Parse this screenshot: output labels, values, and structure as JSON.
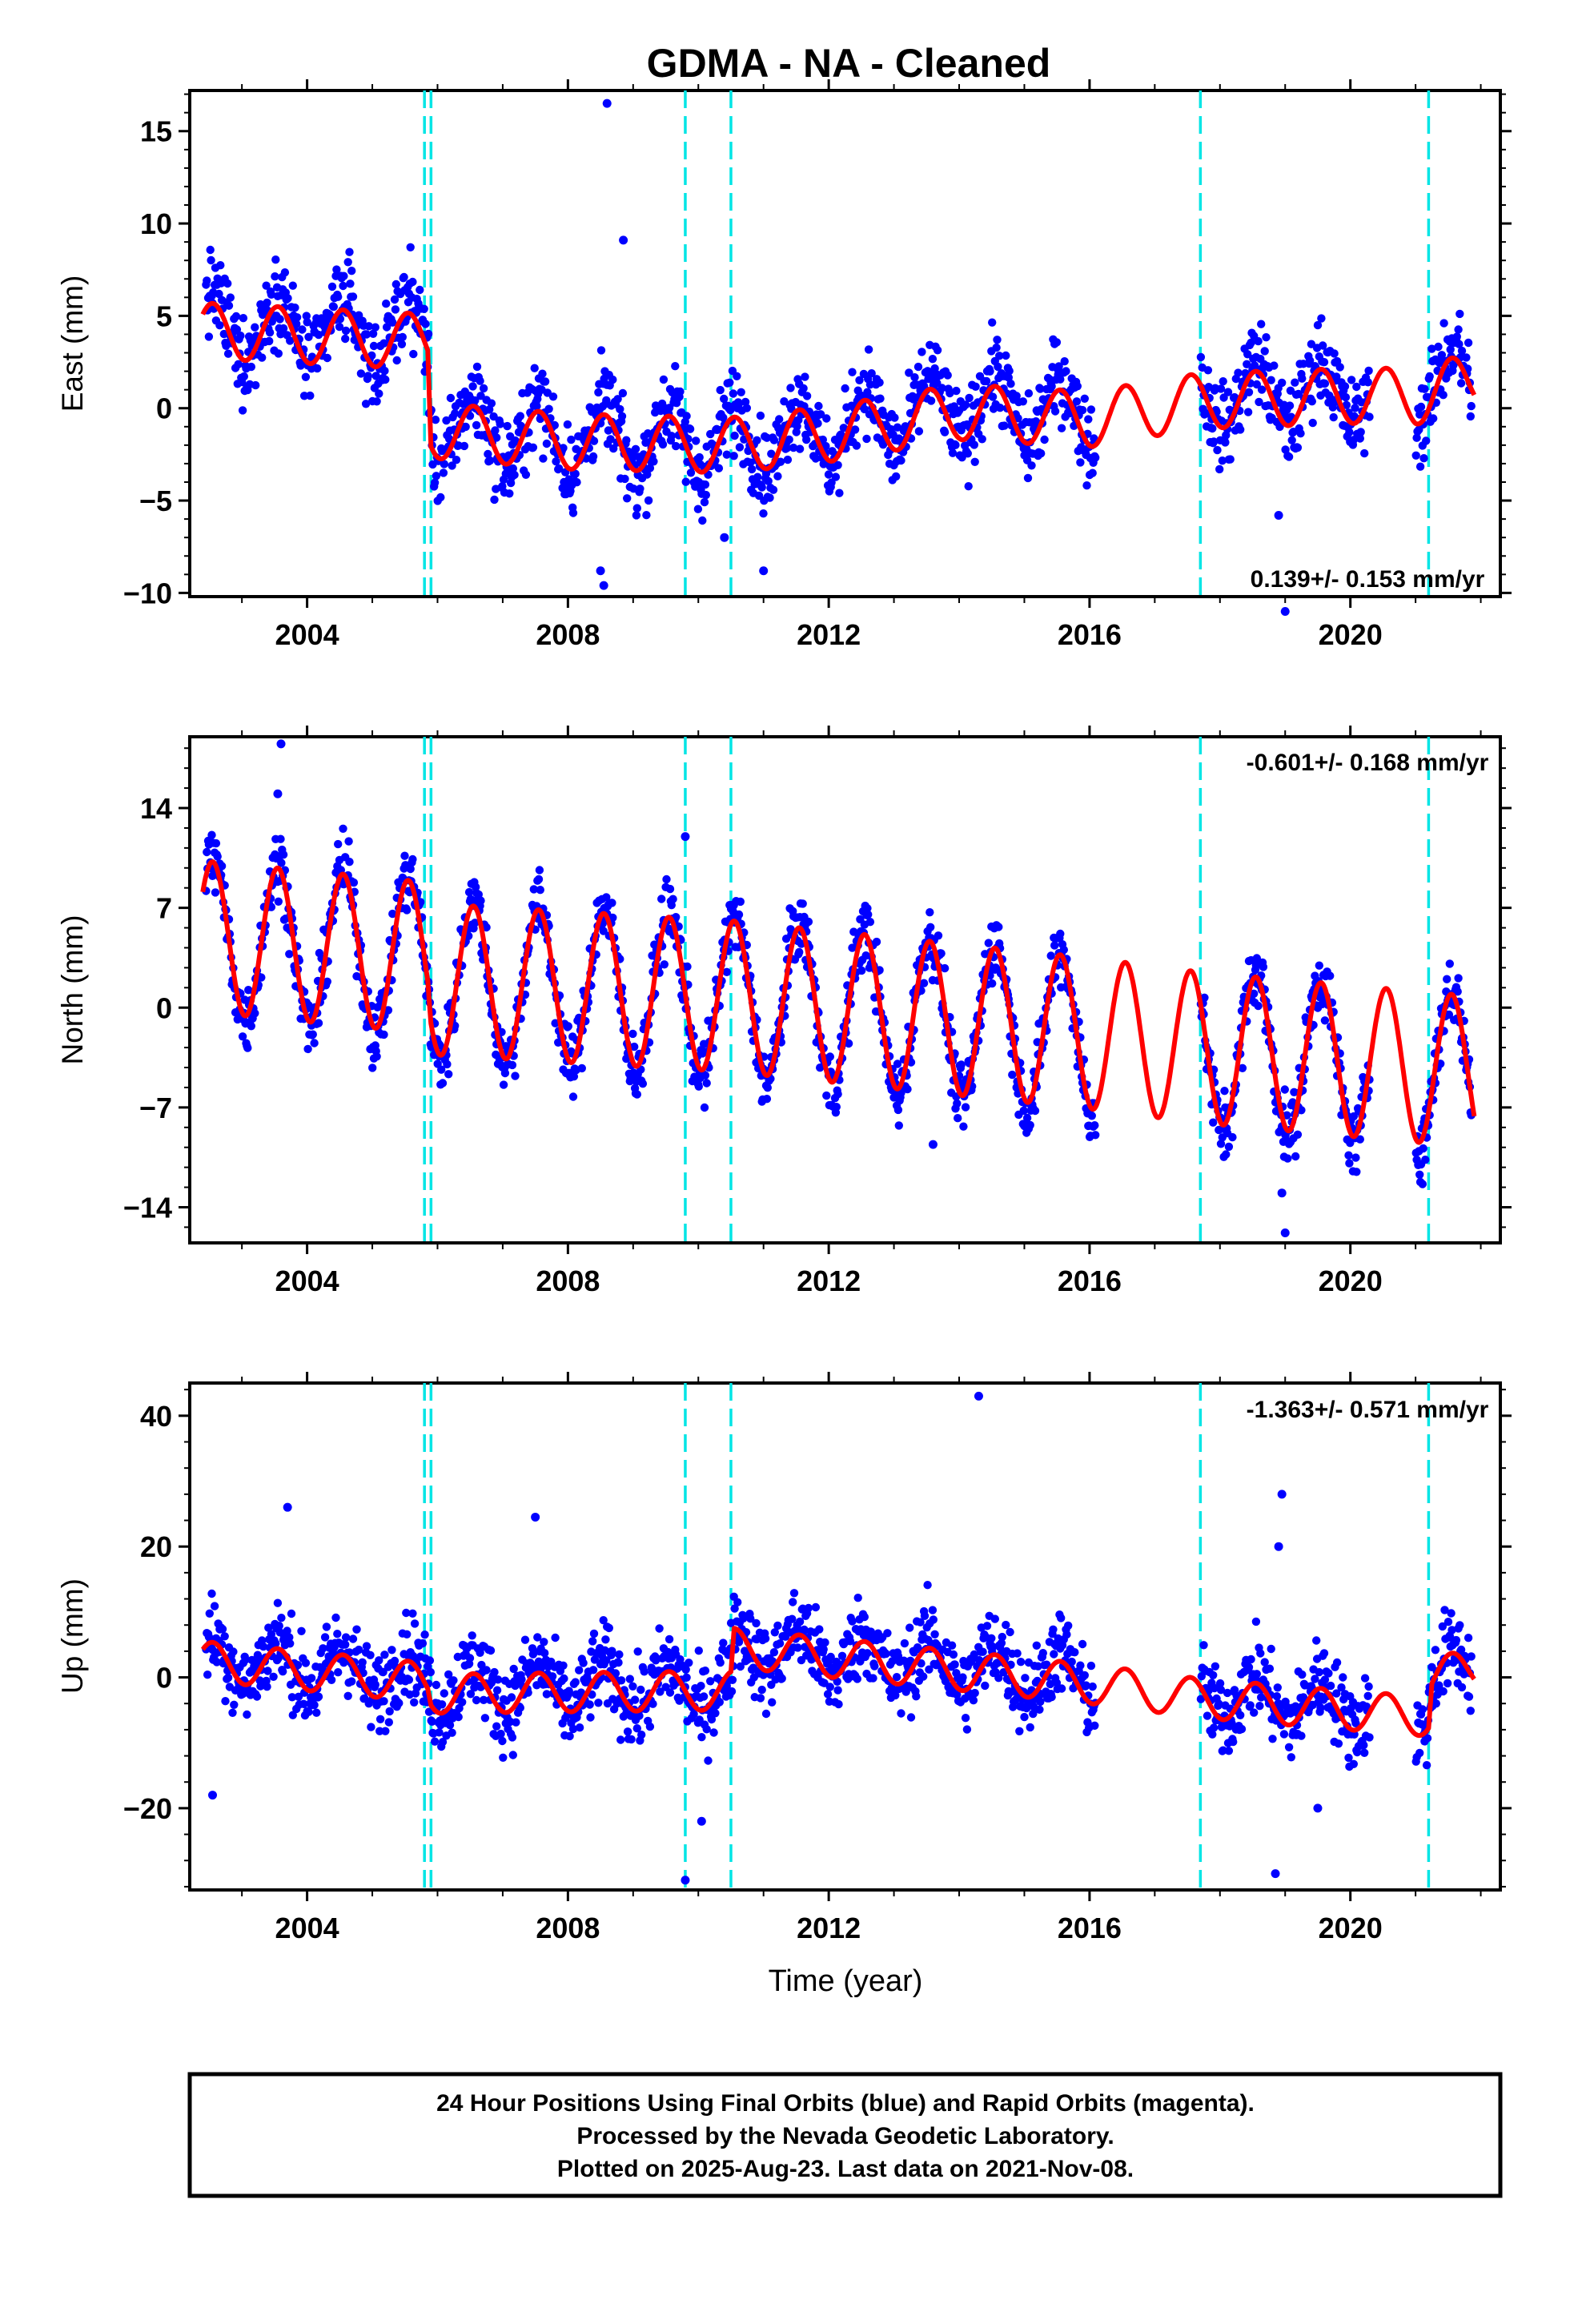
{
  "page": {
    "title": "GDMA  - NA - Cleaned"
  },
  "footer": {
    "line1": "24 Hour Positions Using Final Orbits (blue) and Rapid Orbits (magenta).",
    "line2": "Processed by the Nevada Geodetic Laboratory.",
    "line3": "Plotted on 2025-Aug-23. Last data on 2021-Nov-08."
  },
  "colors": {
    "data": "#0000ff",
    "model": "#ff0000",
    "offsets": "#00e5e5",
    "frame": "#000000"
  },
  "offset_epochs": [
    2005.8,
    2005.9,
    2009.8,
    2010.5,
    2017.7,
    2021.2
  ],
  "chart_data": [
    {
      "type": "scatter",
      "panel": "east",
      "ylabel": "East (mm)",
      "xlabel": "",
      "rate_label": "0.139+/- 0.153 mm/yr",
      "xlim": [
        2002.2,
        2022.3
      ],
      "ylim": [
        -10.2,
        17.2
      ],
      "xticks": [
        2004,
        2008,
        2012,
        2016,
        2020
      ],
      "yticks": [
        -10,
        -5,
        0,
        5,
        10,
        15
      ],
      "ytick_labels": [
        "−10",
        "−5",
        "0",
        "5",
        "10",
        "15"
      ],
      "gaps": [
        [
          2016.1,
          2017.7
        ],
        [
          2020.3,
          2021.0
        ]
      ],
      "series": [
        {
          "role": "data",
          "trend": [
            [
              2002.4,
              4.5
            ],
            [
              2005.85,
              4.0
            ],
            [
              2005.9,
              -1.0
            ],
            [
              2008.0,
              -1.6
            ],
            [
              2010.5,
              -1.8
            ],
            [
              2012.0,
              -1.2
            ],
            [
              2014.0,
              0.2
            ],
            [
              2016.0,
              -0.2
            ],
            [
              2017.7,
              0.6
            ],
            [
              2020.3,
              1.0
            ],
            [
              2021.0,
              1.0
            ],
            [
              2021.9,
              1.8
            ]
          ],
          "annual_amplitude": 1.8,
          "scatter": 1.6
        },
        {
          "role": "model",
          "trend": [
            [
              2002.4,
              4.2
            ],
            [
              2005.85,
              3.6
            ],
            [
              2005.9,
              -1.2
            ],
            [
              2008.0,
              -1.8
            ],
            [
              2010.5,
              -2.0
            ],
            [
              2012.0,
              -1.4
            ],
            [
              2014.0,
              -0.2
            ],
            [
              2016.0,
              -0.6
            ],
            [
              2017.7,
              0.4
            ],
            [
              2020.3,
              0.7
            ],
            [
              2021.0,
              0.6
            ],
            [
              2021.9,
              1.6
            ]
          ],
          "annual_amplitude": 1.5
        }
      ],
      "outliers": [
        [
          2008.6,
          16.5
        ],
        [
          2008.85,
          9.1
        ],
        [
          2008.5,
          -8.8
        ],
        [
          2008.55,
          -9.6
        ],
        [
          2011.0,
          -8.8
        ],
        [
          2010.4,
          -7.0
        ],
        [
          2018.9,
          -5.8
        ],
        [
          2019.0,
          -11.0
        ]
      ]
    },
    {
      "type": "scatter",
      "panel": "north",
      "ylabel": "North (mm)",
      "xlabel": "",
      "rate_label": "-0.601+/- 0.168 mm/yr",
      "xlim": [
        2002.2,
        2022.3
      ],
      "ylim": [
        -16.5,
        19.0
      ],
      "xticks": [
        2004,
        2008,
        2012,
        2016,
        2020
      ],
      "yticks": [
        -14,
        -7,
        0,
        7,
        14
      ],
      "ytick_labels": [
        "−14",
        "−7",
        "0",
        "7",
        "14"
      ],
      "gaps": [
        [
          2016.1,
          2017.7
        ],
        [
          2020.3,
          2021.0
        ]
      ],
      "series": [
        {
          "role": "data",
          "trend": [
            [
              2002.4,
              5.0
            ],
            [
              2005.85,
              3.5
            ],
            [
              2005.9,
              2.0
            ],
            [
              2010.5,
              0.8
            ],
            [
              2016.0,
              -1.8
            ],
            [
              2017.7,
              -2.8
            ],
            [
              2021.9,
              -4.5
            ]
          ],
          "annual_amplitude": 5.6,
          "scatter": 1.7
        },
        {
          "role": "model",
          "trend": [
            [
              2002.4,
              5.0
            ],
            [
              2005.85,
              3.5
            ],
            [
              2005.9,
              2.0
            ],
            [
              2010.5,
              0.8
            ],
            [
              2016.0,
              -1.8
            ],
            [
              2017.7,
              -2.8
            ],
            [
              2021.9,
              -4.5
            ]
          ],
          "annual_amplitude": 5.3
        }
      ],
      "outliers": [
        [
          2003.6,
          18.5
        ],
        [
          2003.55,
          15.0
        ],
        [
          2009.8,
          12.0
        ],
        [
          2013.6,
          -9.6
        ],
        [
          2019.0,
          -15.8
        ],
        [
          2018.95,
          -13.0
        ]
      ]
    },
    {
      "type": "scatter",
      "panel": "up",
      "ylabel": "Up (mm)",
      "xlabel": "Time (year)",
      "rate_label": "-1.363+/- 0.571 mm/yr",
      "xlim": [
        2002.2,
        2022.3
      ],
      "ylim": [
        -32.5,
        45.0
      ],
      "xticks": [
        2004,
        2008,
        2012,
        2016,
        2020
      ],
      "yticks": [
        -20,
        0,
        20,
        40
      ],
      "ytick_labels": [
        "−20",
        "0",
        "20",
        "40"
      ],
      "gaps": [
        [
          2016.1,
          2017.7
        ],
        [
          2020.3,
          2021.0
        ]
      ],
      "series": [
        {
          "role": "data",
          "trend": [
            [
              2002.4,
              3.0
            ],
            [
              2005.85,
              0.0
            ],
            [
              2005.9,
              -1.5
            ],
            [
              2010.5,
              -1.5
            ],
            [
              2010.55,
              5.0
            ],
            [
              2016.0,
              0.0
            ],
            [
              2017.7,
              -2.5
            ],
            [
              2021.2,
              -5.0
            ],
            [
              2021.25,
              0.0
            ],
            [
              2021.9,
              2.0
            ]
          ],
          "annual_amplitude": 3.4,
          "scatter": 4.5
        },
        {
          "role": "model",
          "trend": [
            [
              2002.4,
              2.5
            ],
            [
              2005.85,
              -0.8
            ],
            [
              2005.9,
              -2.5
            ],
            [
              2010.5,
              -2.0
            ],
            [
              2010.55,
              4.5
            ],
            [
              2016.0,
              -1.0
            ],
            [
              2017.7,
              -3.2
            ],
            [
              2021.2,
              -6.0
            ],
            [
              2021.25,
              0.0
            ],
            [
              2021.9,
              1.5
            ]
          ],
          "annual_amplitude": 3.0
        }
      ],
      "outliers": [
        [
          2014.3,
          43.0
        ],
        [
          2003.7,
          26.0
        ],
        [
          2007.5,
          24.5
        ],
        [
          2018.95,
          28.0
        ],
        [
          2018.9,
          20.0
        ],
        [
          2009.8,
          -31.0
        ],
        [
          2010.05,
          -22.0
        ],
        [
          2018.85,
          -30.0
        ],
        [
          2002.55,
          -18.0
        ],
        [
          2019.5,
          -20.0
        ]
      ]
    }
  ]
}
